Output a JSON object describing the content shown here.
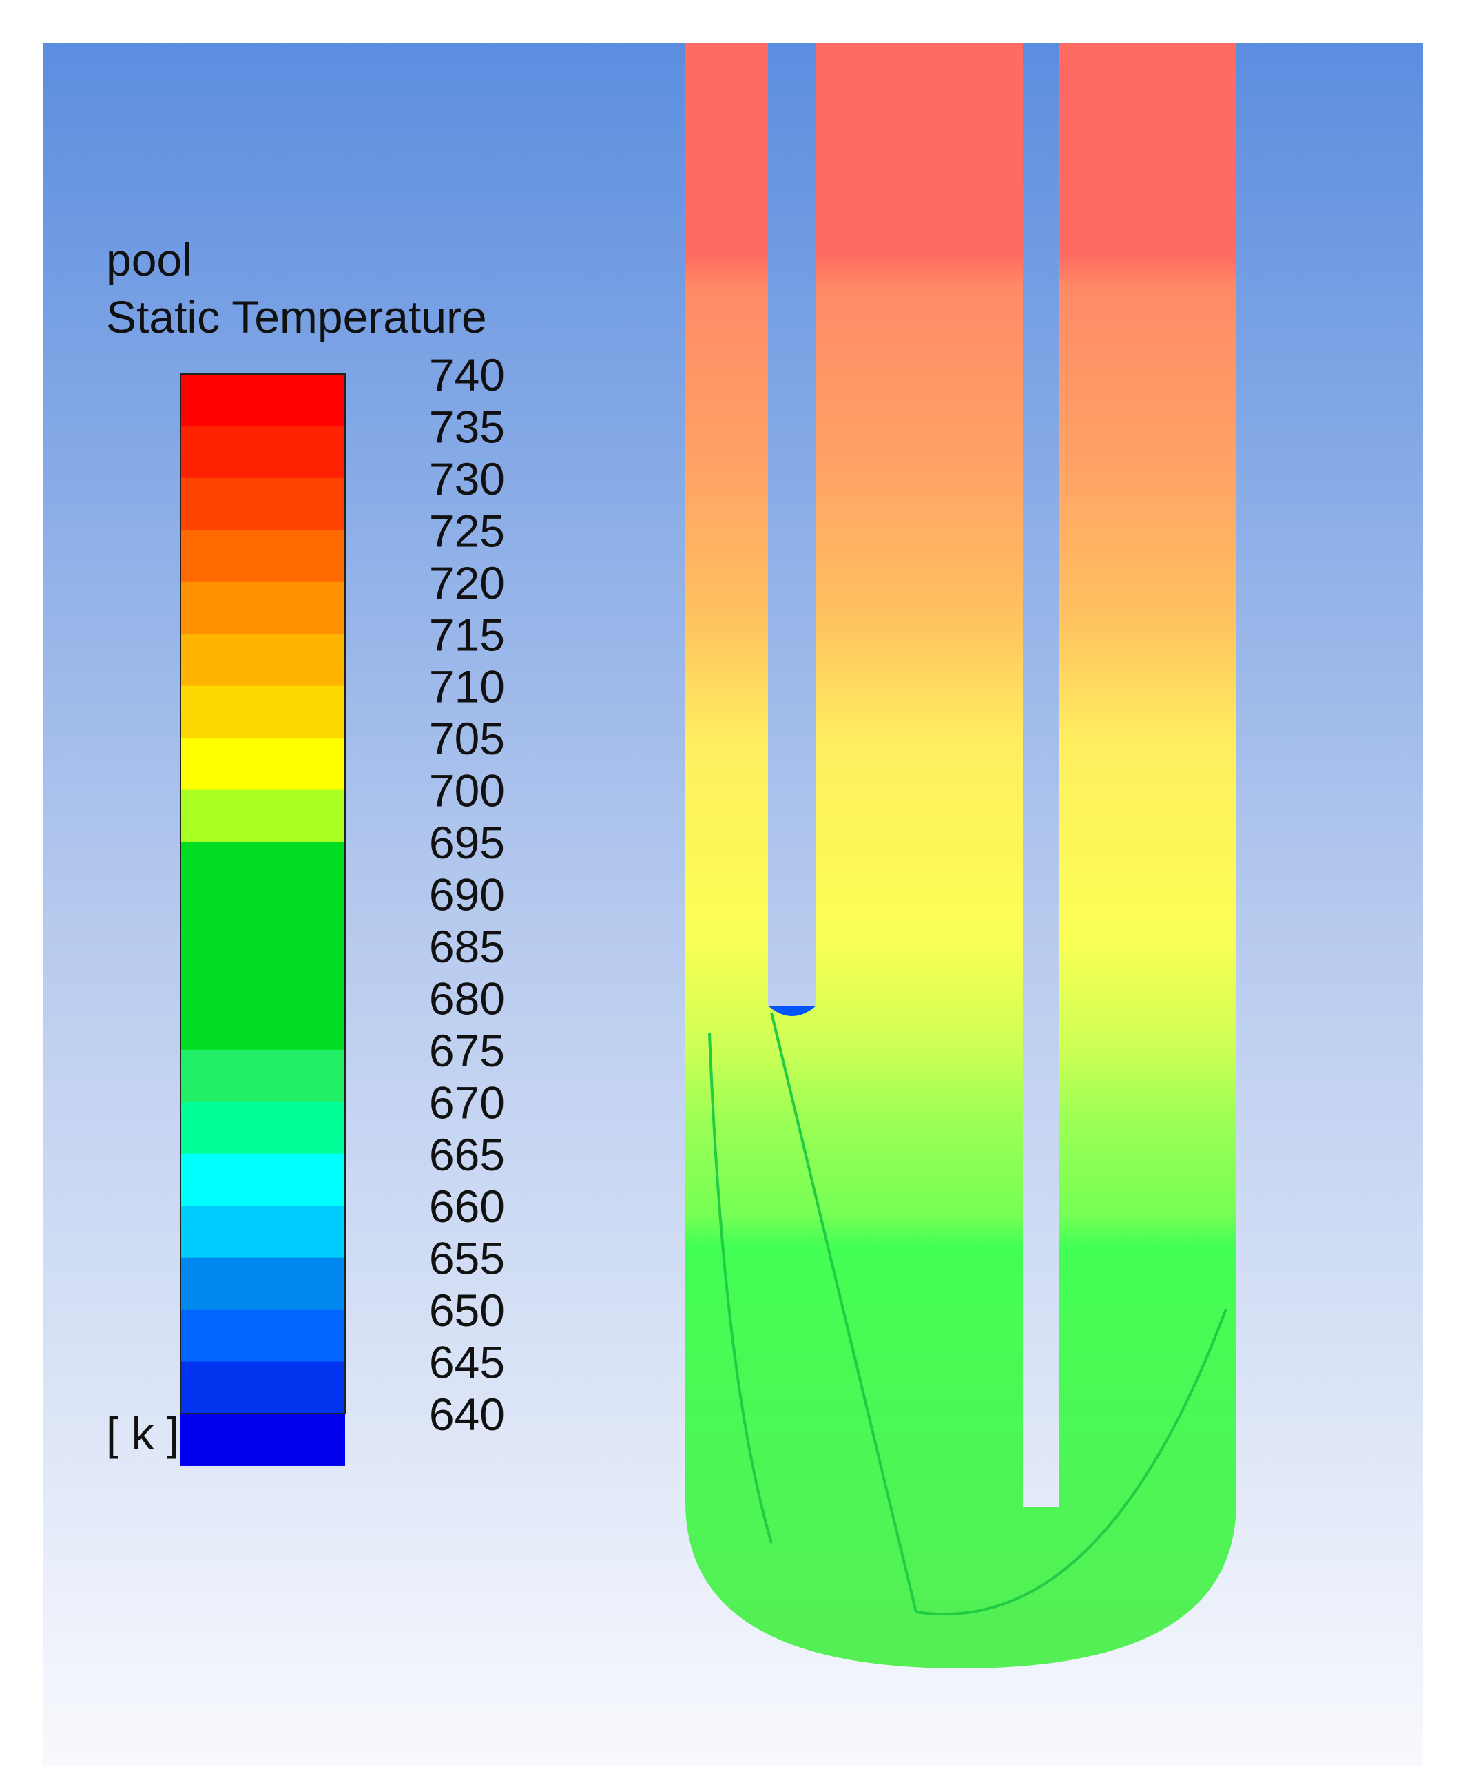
{
  "legend": {
    "title": "pool",
    "subtitle": "Static Temperature",
    "unit": "[ k ]",
    "ticks": [
      740,
      735,
      730,
      725,
      720,
      715,
      710,
      705,
      700,
      695,
      690,
      685,
      680,
      675,
      670,
      665,
      660,
      655,
      650,
      645,
      640
    ],
    "colors": [
      "#ff0000",
      "#ff2200",
      "#ff4400",
      "#ff6a00",
      "#ff9000",
      "#ffb400",
      "#ffd800",
      "#ffff00",
      "#aaff22",
      "#00dd22",
      "#00dd22",
      "#00dd22",
      "#00dd22",
      "#22ee66",
      "#00ff99",
      "#00ffff",
      "#00ccff",
      "#0088ee",
      "#0066ff",
      "#0033ee",
      "#0000ee"
    ]
  }
}
